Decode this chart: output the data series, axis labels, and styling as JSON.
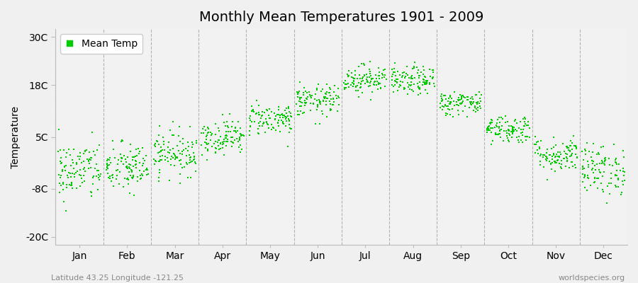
{
  "title": "Monthly Mean Temperatures 1901 - 2009",
  "ylabel": "Temperature",
  "subtitle_left": "Latitude 43.25 Longitude -121.25",
  "subtitle_right": "worldspecies.org",
  "legend_label": "Mean Temp",
  "yticks": [
    -20,
    -8,
    5,
    18,
    30
  ],
  "ytick_labels": [
    "-20C",
    "-8C",
    "5C",
    "18C",
    "30C"
  ],
  "ylim": [
    -22,
    32
  ],
  "months": [
    "Jan",
    "Feb",
    "Mar",
    "Apr",
    "May",
    "Jun",
    "Jul",
    "Aug",
    "Sep",
    "Oct",
    "Nov",
    "Dec"
  ],
  "mean_temps": [
    -3.5,
    -2.8,
    1.0,
    5.0,
    9.5,
    14.0,
    19.5,
    19.0,
    13.5,
    7.0,
    0.5,
    -3.2
  ],
  "std_temps": [
    3.8,
    3.2,
    2.8,
    2.2,
    2.0,
    2.0,
    1.8,
    1.8,
    1.5,
    1.8,
    2.2,
    3.2
  ],
  "n_years": 109,
  "dot_color": "#00CC00",
  "dot_size": 3,
  "background_color": "#F0F0F0",
  "plot_background": "#F2F2F2",
  "title_fontsize": 14,
  "axis_label_fontsize": 10,
  "tick_fontsize": 10,
  "legend_fontsize": 10,
  "seed": 42
}
